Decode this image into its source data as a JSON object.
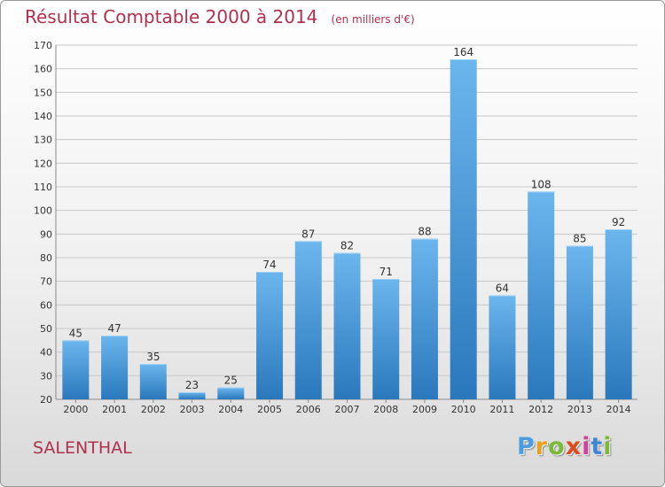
{
  "title": "Résultat Comptable 2000 à 2014",
  "unit": "(en milliers d'€)",
  "commune": "SALENTHAL",
  "logo": {
    "letters": [
      "P",
      "r",
      "o",
      "x",
      "i",
      "t",
      "i"
    ],
    "colors": [
      "#4a9ee0",
      "#e8a21a",
      "#7ab838",
      "#e04a1c",
      "#d6409a",
      "#3f87d6",
      "#7ab838"
    ]
  },
  "colors": {
    "bar_top": "#6cb6ee",
    "bar_bottom": "#2a78bc",
    "grid": "#c8c8c8",
    "axis_text": "#333333"
  },
  "chart_data": {
    "type": "bar",
    "title": "Résultat Comptable 2000 à 2014",
    "subtitle": "(en milliers d'€)",
    "categories": [
      "2000",
      "2001",
      "2002",
      "2003",
      "2004",
      "2005",
      "2006",
      "2007",
      "2008",
      "2009",
      "2010",
      "2011",
      "2012",
      "2013",
      "2014"
    ],
    "values": [
      45,
      47,
      35,
      23,
      25,
      74,
      87,
      82,
      71,
      88,
      164,
      64,
      108,
      85,
      92
    ],
    "ylim": [
      20,
      170
    ],
    "yticks": [
      20,
      30,
      40,
      50,
      60,
      70,
      80,
      90,
      100,
      110,
      120,
      130,
      140,
      150,
      160,
      170
    ],
    "grid": true,
    "data_labels": true
  }
}
